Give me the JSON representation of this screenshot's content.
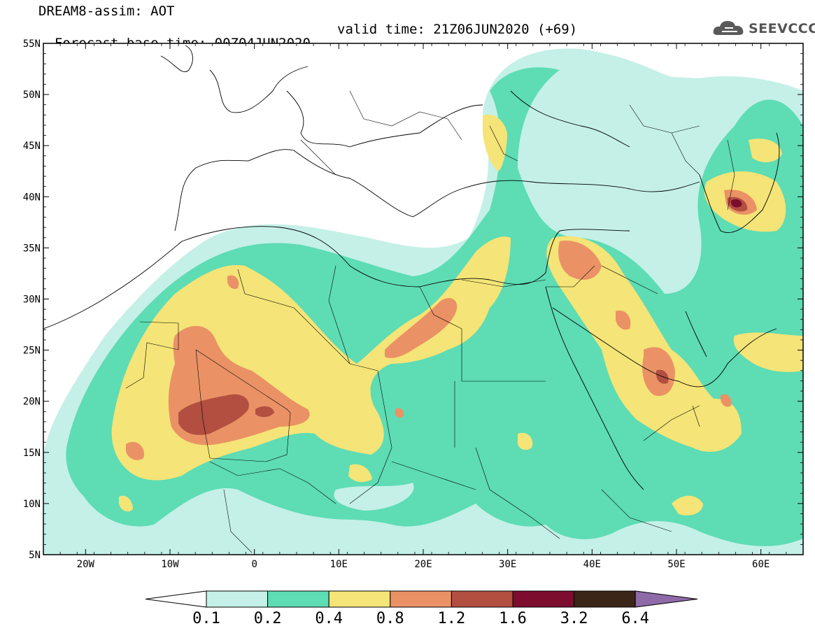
{
  "header": {
    "line1": "DREAM8-assim: AOT",
    "base_time": "Forecast base time: 00Z04JUN2020",
    "valid_time": "valid time: 21Z06JUN2020 (+69)"
  },
  "logo": {
    "text": "SEEVCCC",
    "icon": "cloud-icon"
  },
  "map": {
    "lat_labels": [
      "55N",
      "50N",
      "45N",
      "40N",
      "35N",
      "30N",
      "25N",
      "20N",
      "15N",
      "10N",
      "5N"
    ],
    "lon_labels": [
      "20W",
      "10W",
      "0",
      "10E",
      "20E",
      "30E",
      "40E",
      "50E",
      "60E"
    ],
    "lat_range": [
      5,
      55
    ],
    "lon_range": [
      -25,
      65
    ],
    "colors": {
      "l1": "#c4f0e7",
      "l2": "#5edcb4",
      "l3": "#f5e477",
      "l4": "#ea9265",
      "l5": "#b24f41",
      "l6": "#7c0d2e",
      "l7": "#3b2518",
      "l8": "#8f6aa8",
      "borders": "#000000"
    }
  },
  "colorbar": {
    "levels": [
      "0.1",
      "0.2",
      "0.4",
      "0.8",
      "1.2",
      "1.6",
      "3.2",
      "6.4"
    ],
    "colors": [
      "#c4f0e7",
      "#5edcb4",
      "#f5e477",
      "#ea9265",
      "#b24f41",
      "#7c0d2e",
      "#3b2518"
    ],
    "under_color": "#ffffff",
    "over_color": "#8f6aa8"
  }
}
